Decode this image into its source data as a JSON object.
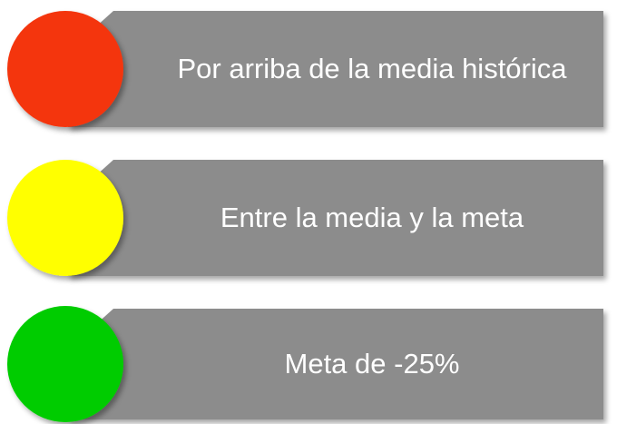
{
  "items": [
    {
      "label": "Por arriba de la media histórica",
      "color": "#f4350f"
    },
    {
      "label": "Entre la media y la meta",
      "color": "#ffff00"
    },
    {
      "label": "Meta de -25%",
      "color": "#00cc00"
    }
  ]
}
